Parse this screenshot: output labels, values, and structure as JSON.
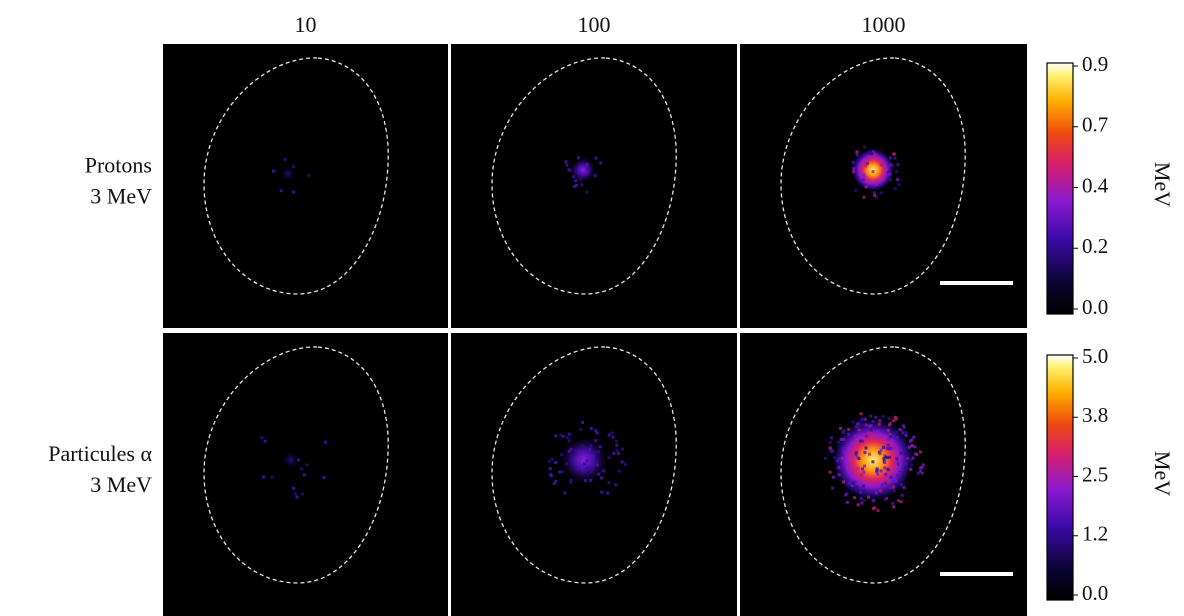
{
  "header": {
    "columns": [
      "10",
      "100",
      "1000"
    ]
  },
  "rows": [
    {
      "label": [
        "Protons",
        "3 MeV"
      ],
      "colorbar": {
        "ticks": [
          "0.9",
          "0.7",
          "0.4",
          "0.2",
          "0.0"
        ],
        "unit": "MeV"
      }
    },
    {
      "label": [
        "Particules α",
        "3 MeV"
      ],
      "colorbar": {
        "ticks": [
          "5.0",
          "3.8",
          "2.5",
          "1.2",
          "0.0"
        ],
        "unit": "MeV"
      }
    }
  ]
}
